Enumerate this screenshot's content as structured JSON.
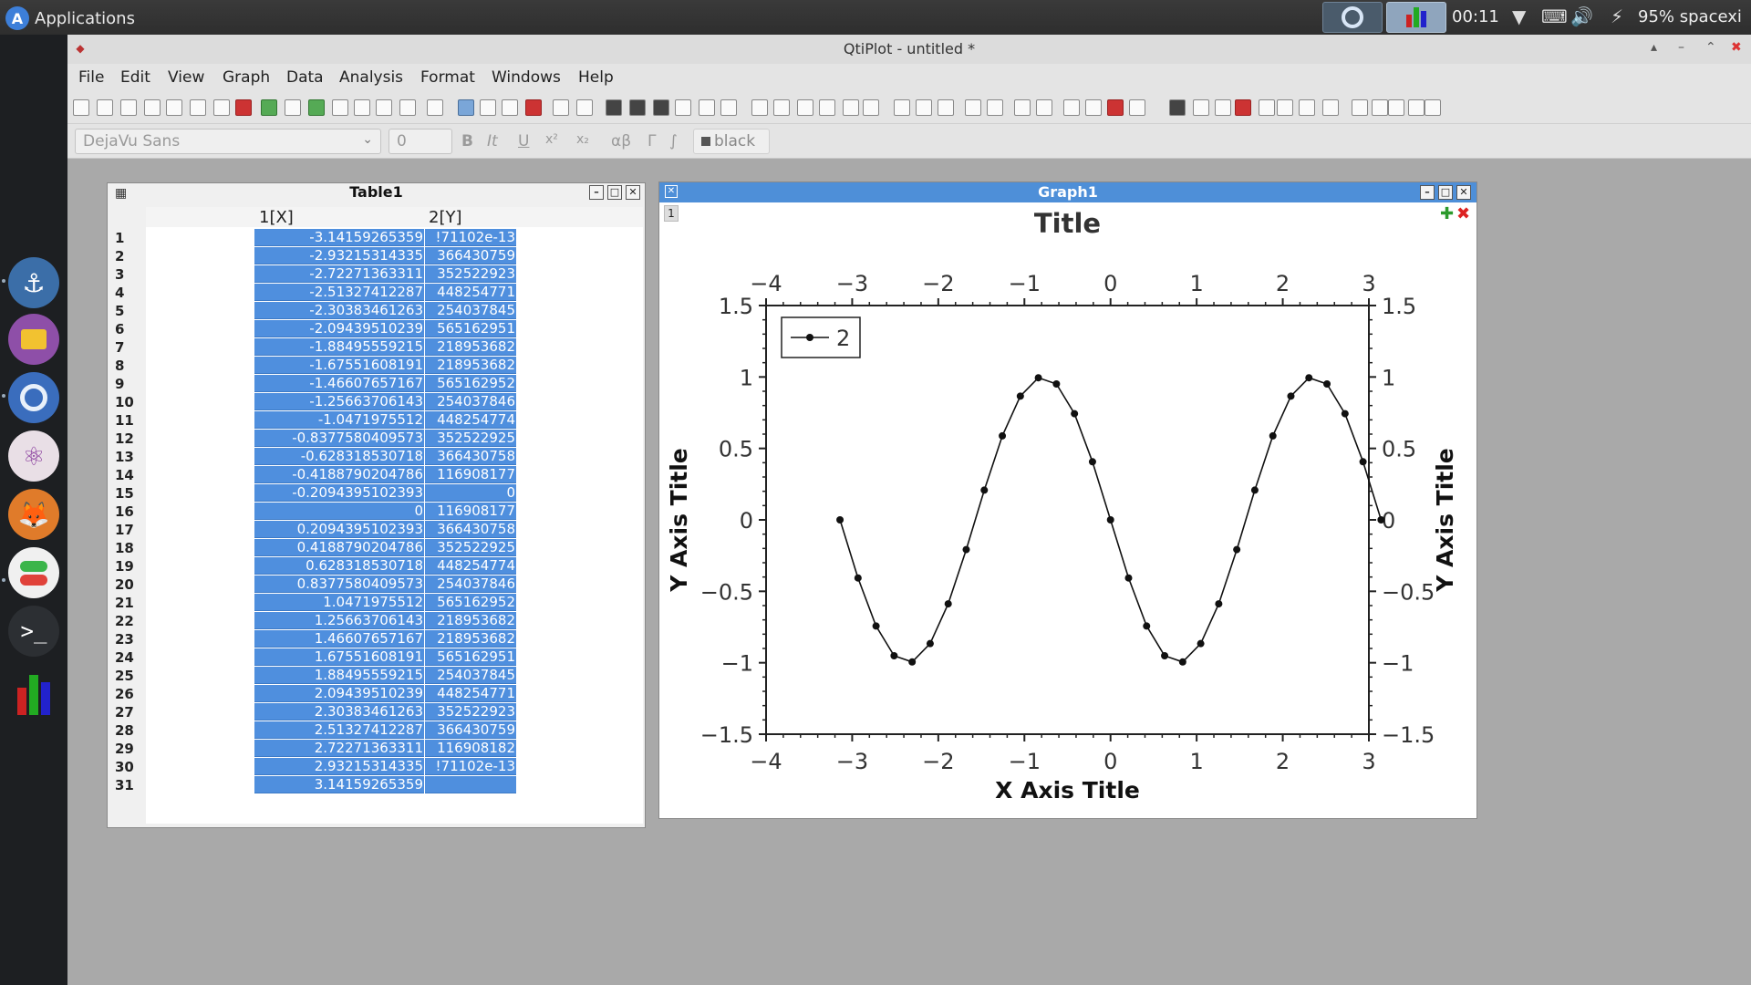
{
  "panel": {
    "apps_label": "Applications",
    "clock": "00:11",
    "battery": "95% spacexi"
  },
  "dock": {
    "items": [
      "anchor-icon",
      "folder-icon",
      "browser-icon",
      "atom-icon",
      "gimp-icon",
      "toggle-icon",
      "terminal-icon",
      "qtiplot-icon"
    ]
  },
  "window": {
    "title": "QtiPlot - untitled *"
  },
  "menu": [
    "File",
    "Edit",
    "View",
    "Graph",
    "Data",
    "Analysis",
    "Format",
    "Windows",
    "Help"
  ],
  "format_bar": {
    "font": "DejaVu Sans",
    "size": "0",
    "bold": "B",
    "italic": "It",
    "underline": "U",
    "superscript": "x²",
    "subscript": "x₂",
    "greek": "αβ",
    "greek_upper": "Γ",
    "integral": "∫",
    "color": "black"
  },
  "table": {
    "title": "Table1",
    "col_x": "1[X]",
    "col_y": "2[Y]",
    "rows": [
      [
        "1",
        "-3.14159265359",
        "!71102e-13"
      ],
      [
        "2",
        "-2.93215314335",
        "366430759"
      ],
      [
        "3",
        "-2.72271363311",
        "352522923"
      ],
      [
        "4",
        "-2.51327412287",
        "448254771"
      ],
      [
        "5",
        "-2.30383461263",
        "254037845"
      ],
      [
        "6",
        "-2.09439510239",
        "565162951"
      ],
      [
        "7",
        "-1.88495559215",
        "218953682"
      ],
      [
        "8",
        "-1.67551608191",
        "218953682"
      ],
      [
        "9",
        "-1.46607657167",
        "565162952"
      ],
      [
        "10",
        "-1.25663706143",
        "254037846"
      ],
      [
        "11",
        "-1.0471975512",
        "448254774"
      ],
      [
        "12",
        "-0.8377580409573",
        "352522925"
      ],
      [
        "13",
        "-0.628318530718",
        "366430758"
      ],
      [
        "14",
        "-0.4188790204786",
        "116908177"
      ],
      [
        "15",
        "-0.2094395102393",
        "0"
      ],
      [
        "16",
        "0",
        "116908177"
      ],
      [
        "17",
        "0.2094395102393",
        "366430758"
      ],
      [
        "18",
        "0.4188790204786",
        "352522925"
      ],
      [
        "19",
        "0.628318530718",
        "448254774"
      ],
      [
        "20",
        "0.8377580409573",
        "254037846"
      ],
      [
        "21",
        "1.0471975512",
        "565162952"
      ],
      [
        "22",
        "1.25663706143",
        "218953682"
      ],
      [
        "23",
        "1.46607657167",
        "218953682"
      ],
      [
        "24",
        "1.67551608191",
        "565162951"
      ],
      [
        "25",
        "1.88495559215",
        "254037845"
      ],
      [
        "26",
        "2.09439510239",
        "448254771"
      ],
      [
        "27",
        "2.30383461263",
        "352522923"
      ],
      [
        "28",
        "2.51327412287",
        "366430759"
      ],
      [
        "29",
        "2.72271363311",
        "116908182"
      ],
      [
        "30",
        "2.93215314335",
        "!71102e-13"
      ],
      [
        "31",
        "3.14159265359",
        ""
      ]
    ]
  },
  "graph": {
    "window_title": "Graph1",
    "layer_label": "1"
  },
  "chart_data": {
    "type": "line",
    "title": "Title",
    "xlabel": "X Axis Title",
    "ylabel": "Y Axis Title",
    "y2label": "Y Axis Title",
    "xlim": [
      -4,
      3
    ],
    "ylim": [
      -1.5,
      1.5
    ],
    "xticks": [
      "−4",
      "−3",
      "−2",
      "−1",
      "0",
      "1",
      "2",
      "3"
    ],
    "yticks": [
      "1.5",
      "1",
      "0.5",
      "0",
      "−0.5",
      "−1",
      "−1.5"
    ],
    "legend_position": "top-left",
    "series": [
      {
        "name": "2",
        "x": [
          -3.1416,
          -2.9322,
          -2.7227,
          -2.5133,
          -2.3038,
          -2.0944,
          -1.885,
          -1.6755,
          -1.4661,
          -1.2566,
          -1.0472,
          -0.8378,
          -0.6283,
          -0.4189,
          -0.2094,
          0.0,
          0.2094,
          0.4189,
          0.6283,
          0.8378,
          1.0472,
          1.2566,
          1.4661,
          1.6755,
          1.885,
          2.0944,
          2.3038,
          2.5133,
          2.7227,
          2.9322,
          3.1416
        ],
        "y": [
          0.0,
          -0.4067,
          -0.7431,
          -0.9511,
          -0.9945,
          -0.866,
          -0.5878,
          -0.2079,
          0.2079,
          0.5878,
          0.866,
          0.9945,
          0.9511,
          0.7431,
          0.4067,
          0.0,
          -0.4067,
          -0.7431,
          -0.9511,
          -0.9945,
          -0.866,
          -0.5878,
          -0.2079,
          0.2079,
          0.5878,
          0.866,
          0.9945,
          0.9511,
          0.7431,
          0.4067,
          0.0
        ]
      }
    ]
  }
}
